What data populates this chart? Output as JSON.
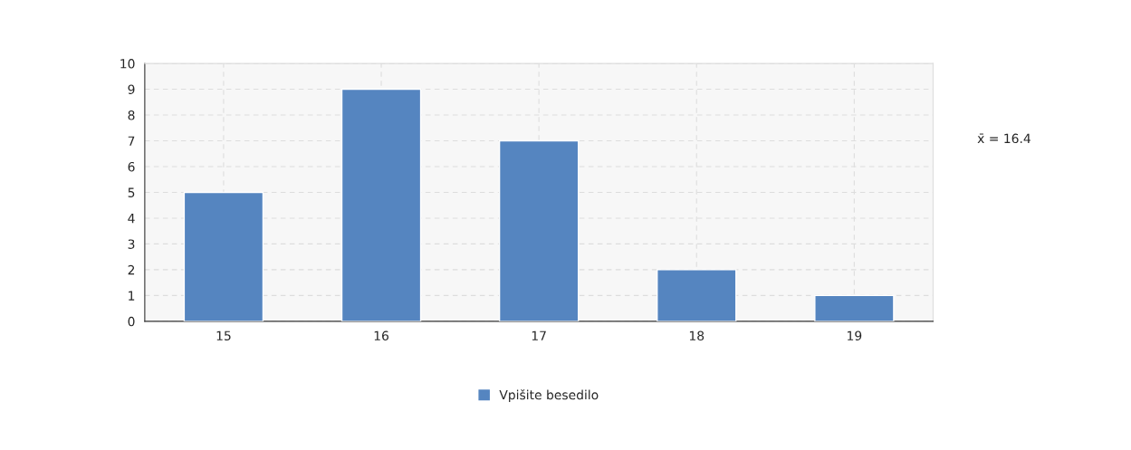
{
  "chart_data": {
    "type": "bar",
    "categories": [
      "15",
      "16",
      "17",
      "18",
      "19"
    ],
    "series": [
      {
        "name": "Vpišite besedilo",
        "color": "#5585c0",
        "values": [
          5,
          9,
          7,
          2,
          1
        ]
      }
    ],
    "ylim": [
      0,
      10
    ],
    "yticks": [
      0,
      1,
      2,
      3,
      4,
      5,
      6,
      7,
      8,
      9,
      10
    ],
    "grid": true,
    "legend": "bottom",
    "annotations": [
      "x̄ = 16.4"
    ]
  }
}
